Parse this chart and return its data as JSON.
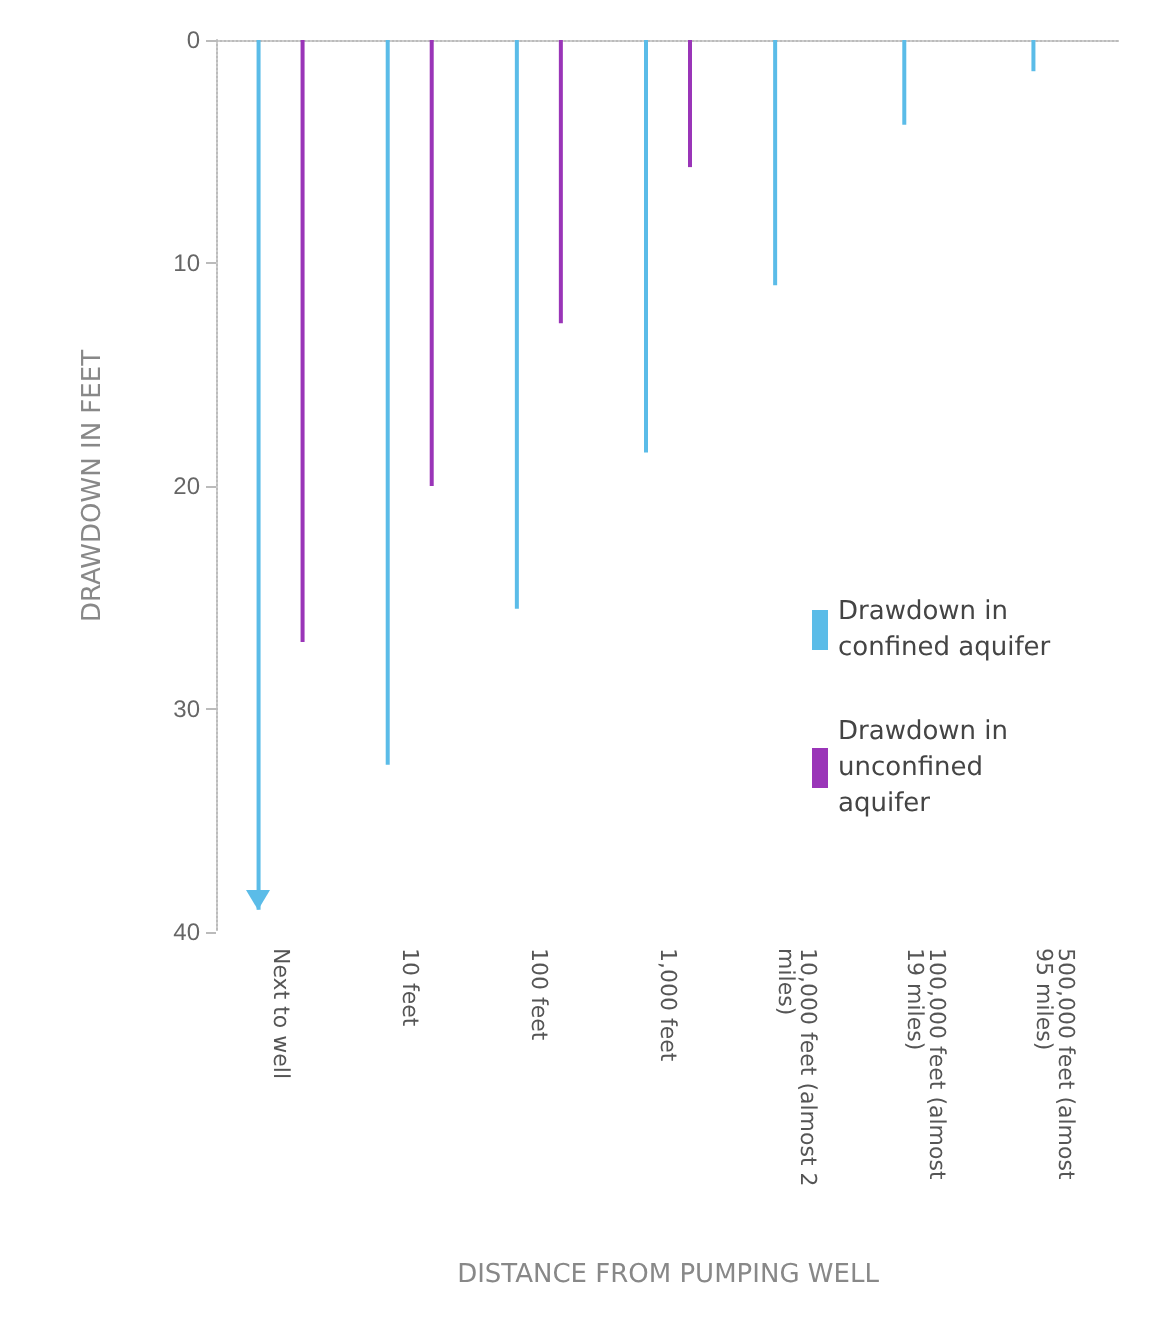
{
  "chart_data": {
    "type": "bar",
    "xlabel": "DISTANCE FROM PUMPING WELL",
    "ylabel": "DRAWDOWN IN FEET",
    "categories": [
      "Next to well",
      "10 feet",
      "100 feet",
      "1,000 feet",
      "10,000 feet (almost 2 miles)",
      "100,000 feet (almost 19 miles)",
      "500,000 feet (almost 95 miles)"
    ],
    "series": [
      {
        "name": "Drawdown in confined aquifer",
        "color": "#5bbce8",
        "values": [
          39,
          32.5,
          25.5,
          18.5,
          11,
          3.8,
          1.4
        ]
      },
      {
        "name": "Drawdown in unconfined aquifer",
        "color": "#9a35b8",
        "values": [
          27,
          20,
          12.7,
          5.7,
          0,
          0,
          0
        ]
      }
    ],
    "ylim": [
      40,
      0
    ],
    "yticks": [
      0,
      10,
      20,
      30,
      40
    ],
    "grid": false,
    "legend": "bottom right"
  }
}
